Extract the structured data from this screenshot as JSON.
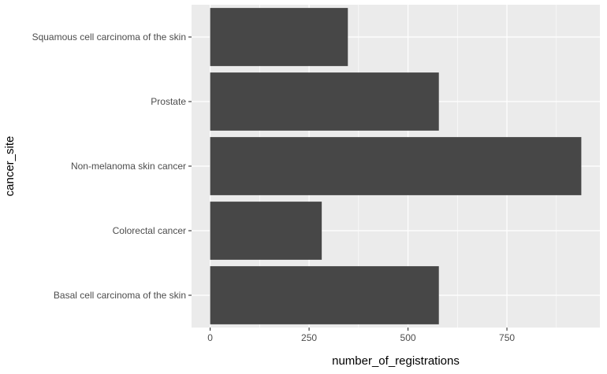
{
  "chart_data": {
    "type": "bar",
    "orientation": "horizontal",
    "categories": [
      "Basal cell carcinoma of the skin",
      "Colorectal cancer",
      "Non-melanoma skin cancer",
      "Prostate",
      "Squamous cell carcinoma of the skin"
    ],
    "values": [
      578,
      282,
      938,
      578,
      348
    ],
    "title": "",
    "xlabel": "number_of_registrations",
    "ylabel": "cancer_site",
    "xlim": [
      -47,
      985
    ],
    "xticks": [
      0,
      250,
      500,
      750
    ],
    "grid": true,
    "legend": "none",
    "colors": {
      "bar": "#474747",
      "panel": "#EBEBEB",
      "grid": "#FFFFFF",
      "tick_text": "#4D4D4D",
      "tick_mark": "#333333"
    }
  }
}
